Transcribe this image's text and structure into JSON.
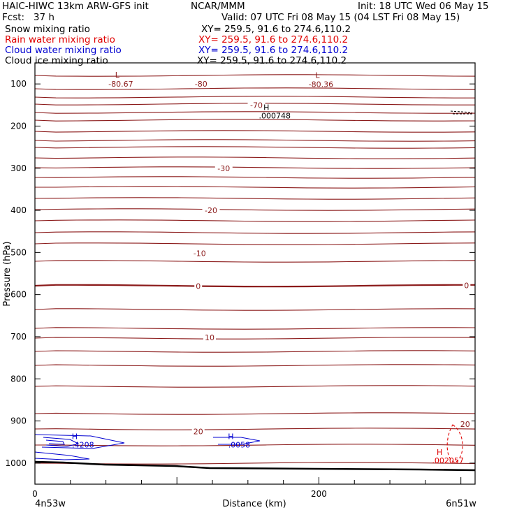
{
  "header": {
    "model_title": "HAIC-HIWC 13km ARW-GFS init",
    "institution": "NCAR/MMM",
    "init_time": "Init: 18 UTC Wed 06 May 15",
    "forecast": "Fcst:   37 h",
    "valid_time": "Valid: 07 UTC Fri 08 May 15 (04 LST Fri 08 May 15)"
  },
  "fields": [
    {
      "label": "Snow mixing ratio",
      "xy": "XY= 259.5, 91.6 to 274.6,110.2",
      "color": "#000000"
    },
    {
      "label": "Rain water mixing ratio",
      "xy": "XY= 259.5, 91.6 to 274.6,110.2",
      "color": "#e00000"
    },
    {
      "label": "Cloud water mixing ratio",
      "xy": "XY= 259.5, 91.6 to 274.6,110.2",
      "color": "#0000d0"
    },
    {
      "label": "Cloud ice mixing ratio",
      "xy": "XY= 259.5, 91.6 to 274.6,110.2",
      "color": "#000000"
    }
  ],
  "chart_data": {
    "type": "cross-section contour",
    "xlabel": "Distance (km)",
    "ylabel": "Pressure (hPa)",
    "x_start_label": "4n53w",
    "x_end_label": "6n51w",
    "x_ticks": [
      0,
      200
    ],
    "xlim": [
      0,
      310
    ],
    "y_ticks": [
      100,
      200,
      300,
      400,
      500,
      600,
      700,
      800,
      900,
      1000
    ],
    "ylim": [
      50,
      1050
    ],
    "temperature_color": "#8b1a1a",
    "temperature_labels": [
      {
        "text": "-80",
        "x": 117,
        "p": 100
      },
      {
        "text": "-70",
        "x": 156,
        "p": 150
      },
      {
        "text": "-30",
        "x": 133,
        "p": 300
      },
      {
        "text": "-20",
        "x": 124,
        "p": 400
      },
      {
        "text": "-10",
        "x": 116,
        "p": 502
      },
      {
        "text": "0",
        "x": 115,
        "p": 580
      },
      {
        "text": "0",
        "x": 304,
        "p": 578
      },
      {
        "text": "10",
        "x": 123,
        "p": 702
      },
      {
        "text": "20",
        "x": 115,
        "p": 925
      },
      {
        "text": "20",
        "x": 303,
        "p": 907
      }
    ],
    "lows": [
      {
        "marker": "L",
        "value": "-80.67",
        "x": 58,
        "p": 85
      },
      {
        "marker": "L",
        "value": "-80.36",
        "x": 199,
        "p": 86
      }
    ],
    "highs": [
      {
        "marker": "H",
        "value": ".000748",
        "x": 163,
        "p": 162,
        "field": "Cloud ice mixing ratio"
      },
      {
        "marker": "H",
        "value": ".4208",
        "x": 28,
        "p": 943,
        "field": "Cloud water mixing ratio"
      },
      {
        "marker": "H",
        "value": ".0058",
        "x": 138,
        "p": 943,
        "field": "Cloud water mixing ratio"
      },
      {
        "marker": "H",
        "value": ".002057",
        "x": 285,
        "p": 980,
        "field": "Rain water mixing ratio"
      }
    ]
  }
}
